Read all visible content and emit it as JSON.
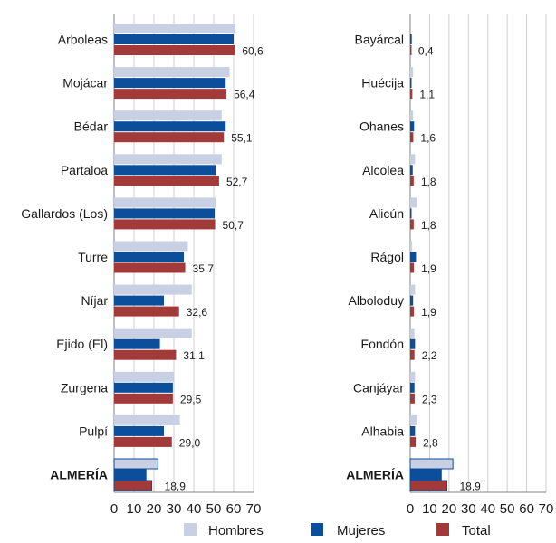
{
  "colors": {
    "hombres": "#c9d0e3",
    "mujeres": "#0a4e9c",
    "total": "#a33a3a",
    "grid": "#cfcfcf",
    "axis": "#808080"
  },
  "legend": {
    "placement": "bottom",
    "items": [
      {
        "label": "Hombres",
        "color": "#c9d0e3"
      },
      {
        "label": "Mujeres",
        "color": "#0a4e9c"
      },
      {
        "label": "Total",
        "color": "#a33a3a"
      }
    ]
  },
  "chart_data": [
    {
      "type": "bar",
      "orientation": "horizontal",
      "grid": true,
      "xlim": [
        0,
        70
      ],
      "xticks": [
        "0",
        "10",
        "20",
        "30",
        "40",
        "50",
        "60",
        "70"
      ],
      "categories": [
        "Arboleas",
        "Mojácar",
        "Bédar",
        "Partaloa",
        "Gallardos (Los)",
        "Turre",
        "Níjar",
        "Ejido (El)",
        "Zurgena",
        "Pulpí",
        "ALMERÍA"
      ],
      "series": [
        {
          "name": "Hombres",
          "values": [
            61.0,
            58.0,
            54.0,
            54.0,
            51.0,
            37.0,
            39.0,
            39.0,
            30.0,
            33.0,
            22.0
          ]
        },
        {
          "name": "Mujeres",
          "values": [
            60.0,
            56.0,
            56.0,
            51.0,
            50.5,
            35.0,
            25.0,
            23.0,
            29.5,
            25.0,
            16.0
          ]
        },
        {
          "name": "Total",
          "values": [
            60.6,
            56.4,
            55.1,
            52.7,
            50.7,
            35.7,
            32.6,
            31.1,
            29.5,
            29.0,
            18.9
          ]
        }
      ],
      "value_labels": [
        "60,6",
        "56,4",
        "55,1",
        "52,7",
        "50,7",
        "35,7",
        "32,6",
        "31,1",
        "29,5",
        "29,0",
        "18,9"
      ]
    },
    {
      "type": "bar",
      "orientation": "horizontal",
      "grid": true,
      "xlim": [
        0,
        70
      ],
      "xticks": [
        "0",
        "10",
        "20",
        "30",
        "40",
        "50",
        "60",
        "70"
      ],
      "categories": [
        "Bayárcal",
        "Huécija",
        "Ohanes",
        "Alcolea",
        "Alicún",
        "Rágol",
        "Alboloduy",
        "Fondón",
        "Canjáyar",
        "Alhabia",
        "ALMERÍA"
      ],
      "series": [
        {
          "name": "Hombres",
          "values": [
            0.0,
            1.5,
            1.5,
            2.5,
            3.5,
            1.0,
            2.5,
            2.2,
            2.5,
            3.5,
            22.0
          ]
        },
        {
          "name": "Mujeres",
          "values": [
            0.8,
            0.5,
            2.0,
            1.3,
            0.5,
            3.0,
            1.5,
            2.5,
            2.2,
            2.5,
            16.0
          ]
        },
        {
          "name": "Total",
          "values": [
            0.4,
            1.1,
            1.6,
            1.8,
            1.8,
            1.9,
            1.9,
            2.2,
            2.3,
            2.8,
            18.9
          ]
        }
      ],
      "value_labels": [
        "0,4",
        "1,1",
        "1,6",
        "1,8",
        "1,8",
        "1,9",
        "1,9",
        "2,2",
        "2,3",
        "2,8",
        "18,9"
      ]
    }
  ]
}
